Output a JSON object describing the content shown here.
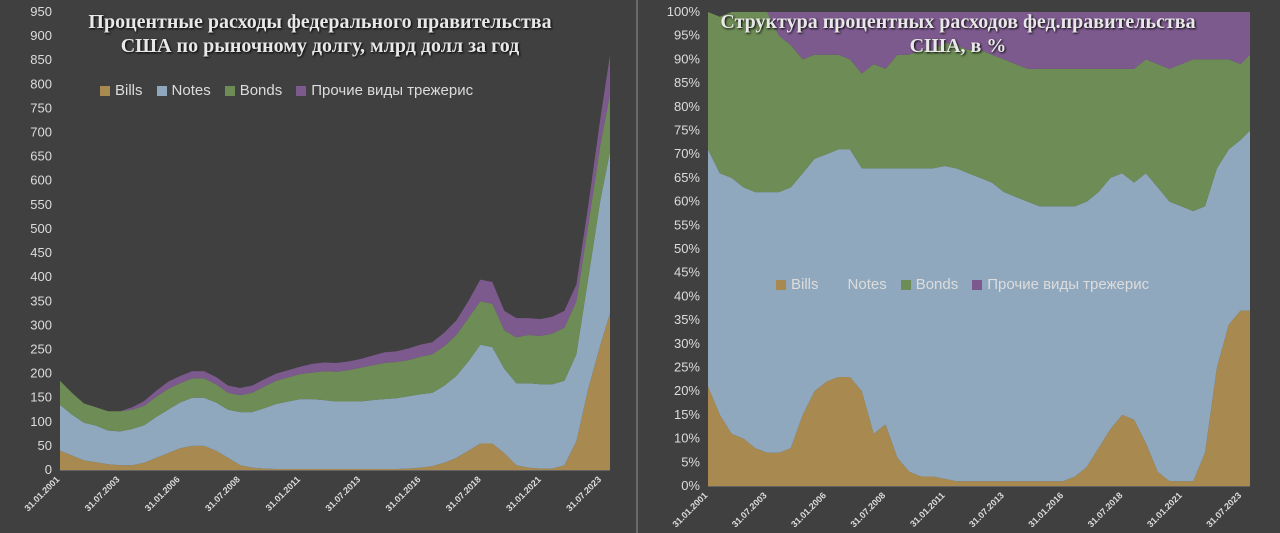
{
  "colors": {
    "bills": "#a8894f",
    "notes": "#8fa8bd",
    "bonds": "#6e8c55",
    "other": "#7d5a8e"
  },
  "chart_data": [
    {
      "type": "area",
      "title": "Процентные расходы федерального правительства США по рыночному долгу, млрд долл за год",
      "ylim": [
        0,
        950
      ],
      "yticks": [
        0,
        50,
        100,
        150,
        200,
        250,
        300,
        350,
        400,
        450,
        500,
        550,
        600,
        650,
        700,
        750,
        800,
        850,
        900,
        950
      ],
      "xtick_labels": [
        "31.01.2001",
        "31.07.2003",
        "31.01.2006",
        "31.07.2008",
        "31.01.2011",
        "31.07.2013",
        "31.01.2016",
        "31.07.2018",
        "31.01.2021",
        "31.07.2023"
      ],
      "x": [
        2001.0,
        2001.5,
        2002.0,
        2002.5,
        2003.0,
        2003.5,
        2004.0,
        2004.5,
        2005.0,
        2005.5,
        2006.0,
        2006.5,
        2007.0,
        2007.5,
        2008.0,
        2008.5,
        2009.0,
        2009.5,
        2010.0,
        2010.5,
        2011.0,
        2011.5,
        2012.0,
        2012.5,
        2013.0,
        2013.5,
        2014.0,
        2014.5,
        2015.0,
        2015.5,
        2016.0,
        2016.5,
        2017.0,
        2017.5,
        2018.0,
        2018.5,
        2019.0,
        2019.5,
        2020.0,
        2020.5,
        2021.0,
        2021.5,
        2022.0,
        2022.5,
        2023.0,
        2023.5,
        2023.9
      ],
      "legend": [
        "Bills",
        "Notes",
        "Bonds",
        "Прочие виды трежерис"
      ],
      "series": [
        {
          "name": "Bills",
          "values": [
            40,
            30,
            20,
            16,
            12,
            10,
            10,
            15,
            25,
            35,
            45,
            50,
            50,
            40,
            25,
            10,
            5,
            3,
            2,
            2,
            2,
            2,
            2,
            2,
            2,
            2,
            2,
            2,
            2,
            3,
            5,
            8,
            15,
            25,
            40,
            55,
            55,
            35,
            10,
            5,
            3,
            3,
            10,
            60,
            170,
            260,
            325
          ]
        },
        {
          "name": "Notes",
          "values": [
            95,
            85,
            78,
            76,
            70,
            70,
            75,
            78,
            85,
            90,
            95,
            100,
            100,
            100,
            100,
            110,
            115,
            125,
            135,
            140,
            145,
            145,
            143,
            140,
            140,
            140,
            143,
            145,
            147,
            150,
            152,
            152,
            160,
            170,
            185,
            205,
            200,
            175,
            170,
            175,
            175,
            175,
            175,
            180,
            230,
            300,
            335
          ]
        },
        {
          "name": "Bonds",
          "values": [
            50,
            45,
            40,
            38,
            40,
            42,
            40,
            40,
            42,
            43,
            40,
            40,
            40,
            38,
            35,
            35,
            40,
            45,
            48,
            50,
            52,
            55,
            60,
            62,
            65,
            70,
            72,
            75,
            75,
            75,
            78,
            80,
            82,
            85,
            90,
            90,
            90,
            80,
            95,
            100,
            100,
            105,
            110,
            110,
            110,
            115,
            120
          ]
        },
        {
          "name": "Прочие виды трежерис",
          "values": [
            0,
            0,
            0,
            0,
            0,
            0,
            5,
            10,
            12,
            15,
            15,
            15,
            15,
            15,
            15,
            15,
            15,
            15,
            15,
            15,
            15,
            18,
            18,
            18,
            18,
            18,
            20,
            22,
            22,
            24,
            25,
            25,
            28,
            30,
            35,
            45,
            45,
            40,
            40,
            35,
            35,
            35,
            35,
            35,
            40,
            55,
            80
          ]
        }
      ]
    },
    {
      "type": "area",
      "title": "Структура процентных расходов фед.правительства США, в %",
      "ylim": [
        0,
        100
      ],
      "yticks": [
        "0%",
        "5%",
        "10%",
        "15%",
        "20%",
        "25%",
        "30%",
        "35%",
        "40%",
        "45%",
        "50%",
        "55%",
        "60%",
        "65%",
        "70%",
        "75%",
        "80%",
        "85%",
        "90%",
        "95%",
        "100%"
      ],
      "xtick_labels": [
        "31.01.2001",
        "31.07.2003",
        "31.01.2006",
        "31.07.2008",
        "31.01.2011",
        "31.07.2013",
        "31.01.2016",
        "31.07.2018",
        "31.01.2021",
        "31.07.2023"
      ],
      "x": [
        2001.0,
        2001.5,
        2002.0,
        2002.5,
        2003.0,
        2003.5,
        2004.0,
        2004.5,
        2005.0,
        2005.5,
        2006.0,
        2006.5,
        2007.0,
        2007.5,
        2008.0,
        2008.5,
        2009.0,
        2009.5,
        2010.0,
        2010.5,
        2011.0,
        2011.5,
        2012.0,
        2012.5,
        2013.0,
        2013.5,
        2014.0,
        2014.5,
        2015.0,
        2015.5,
        2016.0,
        2016.5,
        2017.0,
        2017.5,
        2018.0,
        2018.5,
        2019.0,
        2019.5,
        2020.0,
        2020.5,
        2021.0,
        2021.5,
        2022.0,
        2022.5,
        2023.0,
        2023.5,
        2023.9
      ],
      "legend": [
        "Bills",
        "Notes",
        "Bonds",
        "Прочие виды трежерис"
      ],
      "series": [
        {
          "name": "Bills",
          "values": [
            21,
            15,
            11,
            10,
            8,
            7,
            7,
            8,
            15,
            20,
            22,
            23,
            23,
            20,
            11,
            13,
            6,
            3,
            2,
            2,
            1.5,
            1,
            1,
            1,
            1,
            1,
            1,
            1,
            1,
            1,
            1,
            2,
            4,
            8,
            12,
            15,
            14,
            9,
            3,
            1,
            1,
            1,
            7,
            25,
            34,
            37,
            37
          ]
        },
        {
          "name": "Notes",
          "values": [
            50,
            51,
            54,
            53,
            54,
            55,
            55,
            55,
            51,
            49,
            48,
            48,
            48,
            47,
            56,
            54,
            61,
            64,
            65,
            65,
            66,
            66,
            65,
            64,
            63,
            61,
            60,
            59,
            58,
            58,
            58,
            57,
            56,
            54,
            53,
            51,
            50,
            57,
            60,
            59,
            58,
            57,
            52,
            42,
            37,
            36,
            38
          ]
        },
        {
          "name": "Bonds",
          "values": [
            29,
            33,
            35,
            37,
            38,
            38,
            33,
            30,
            24,
            22,
            21,
            20,
            19,
            20,
            22,
            21,
            24,
            24,
            25,
            25,
            26,
            26,
            26,
            27,
            27,
            28,
            28,
            28,
            29,
            29,
            29,
            29,
            28,
            26,
            23,
            22,
            24,
            24,
            26,
            28,
            30,
            32,
            31,
            23,
            19,
            16,
            16
          ]
        },
        {
          "name": "Прочие виды трежерис",
          "values": [
            0,
            0,
            0,
            0,
            0,
            0,
            5,
            7,
            10,
            9,
            9,
            9,
            10,
            13,
            11,
            12,
            9,
            9,
            8,
            8,
            6.5,
            7,
            8,
            8,
            9,
            10,
            11,
            12,
            12,
            12,
            12,
            12,
            12,
            12,
            12,
            12,
            12,
            10,
            11,
            12,
            11,
            10,
            10,
            10,
            10,
            11,
            9
          ]
        }
      ]
    }
  ]
}
